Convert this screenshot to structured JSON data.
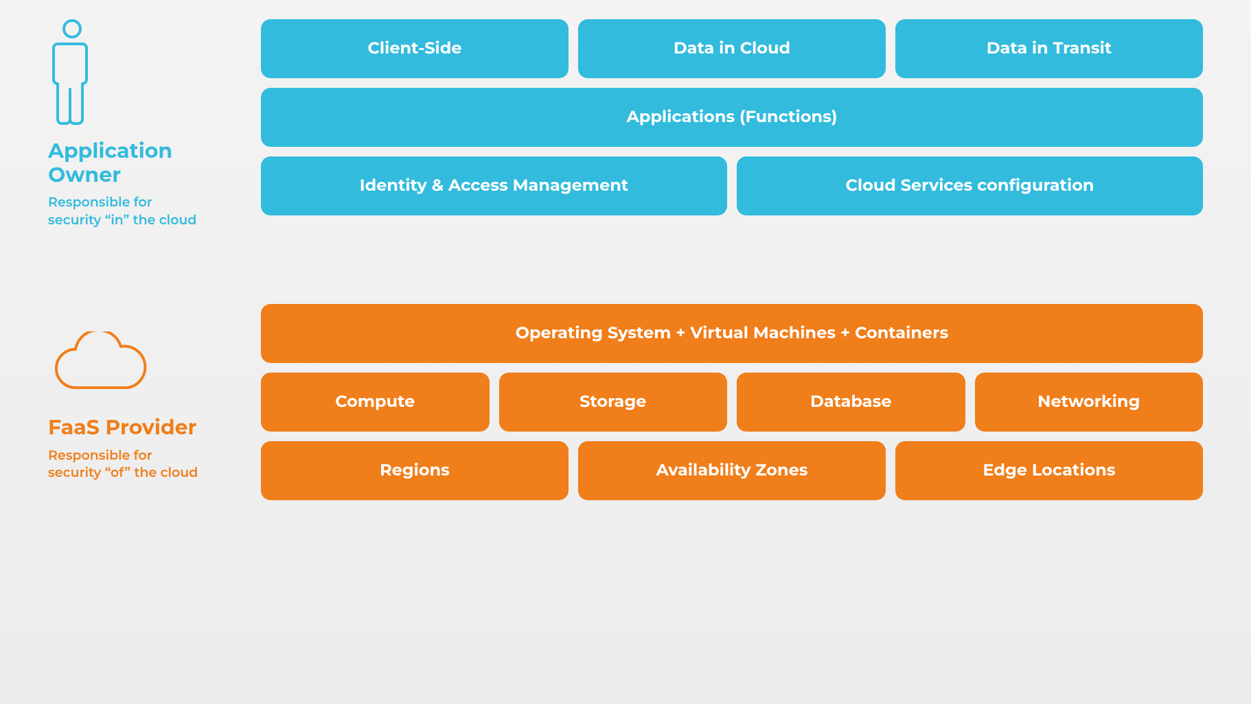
{
  "diagram": {
    "type": "infographic",
    "background_gradient": [
      "#f3f3f3",
      "#ececec"
    ],
    "box_border_radius": 14,
    "box_font_size": 24,
    "box_font_weight": 700,
    "title_font_size": 30,
    "subtitle_font_size": 19,
    "gap": 14
  },
  "owner": {
    "title": "Application Owner",
    "subtitle": "Responsible for security “in” the cloud",
    "color": "#33bbdd",
    "icon": "person",
    "rows": [
      {
        "items": [
          {
            "label": "Client-Side"
          },
          {
            "label": "Data in Cloud"
          },
          {
            "label": "Data in Transit"
          }
        ]
      },
      {
        "items": [
          {
            "label": "Applications (Functions)"
          }
        ]
      },
      {
        "items": [
          {
            "label": "Identity & Access Management"
          },
          {
            "label": "Cloud Services configuration"
          }
        ]
      }
    ]
  },
  "provider": {
    "title": "FaaS Provider",
    "subtitle": "Responsible for security “of” the cloud",
    "color": "#f07e1a",
    "icon": "cloud",
    "rows": [
      {
        "items": [
          {
            "label": "Operating System + Virtual Machines + Containers"
          }
        ]
      },
      {
        "items": [
          {
            "label": "Compute"
          },
          {
            "label": "Storage"
          },
          {
            "label": "Database"
          },
          {
            "label": "Networking"
          }
        ]
      },
      {
        "items": [
          {
            "label": "Regions"
          },
          {
            "label": "Availability Zones"
          },
          {
            "label": "Edge Locations"
          }
        ]
      }
    ]
  }
}
